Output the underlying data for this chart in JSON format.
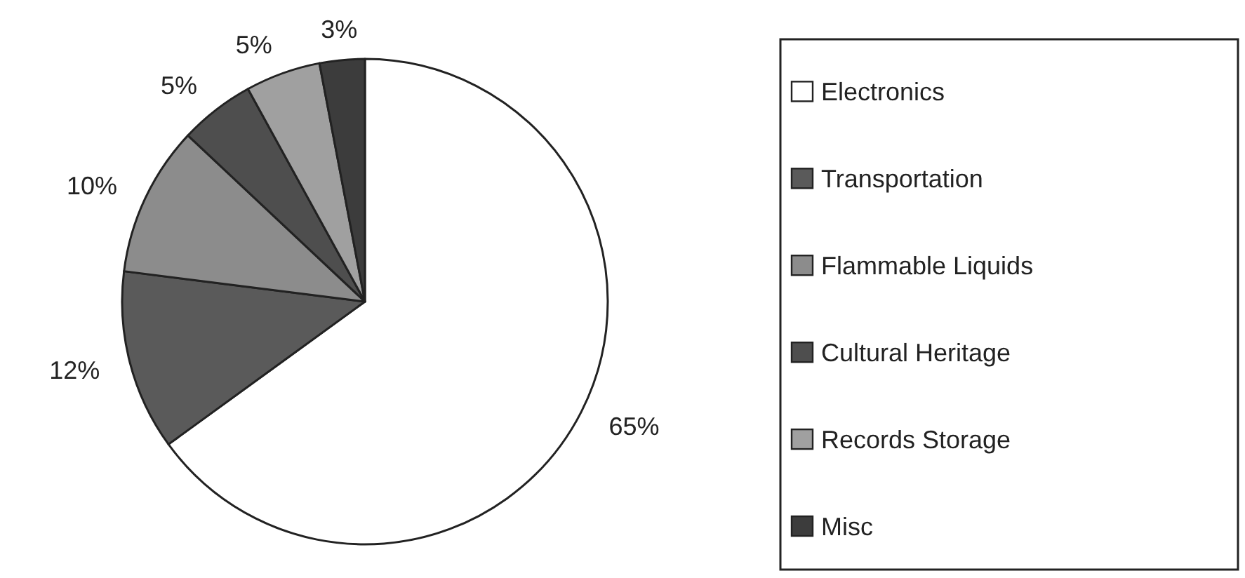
{
  "chart_data": {
    "type": "pie",
    "categories": [
      "Electronics",
      "Transportation",
      "Flammable Liquids",
      "Cultural Heritage",
      "Records Storage",
      "Misc"
    ],
    "values": [
      65,
      12,
      10,
      5,
      5,
      3
    ],
    "colors": [
      "#ffffff",
      "#5a5a5a",
      "#8c8c8c",
      "#4e4e4e",
      "#a0a0a0",
      "#3c3c3c"
    ],
    "value_labels": [
      "65%",
      "12%",
      "10%",
      "5%",
      "5%",
      "3%"
    ],
    "legend": "right"
  }
}
